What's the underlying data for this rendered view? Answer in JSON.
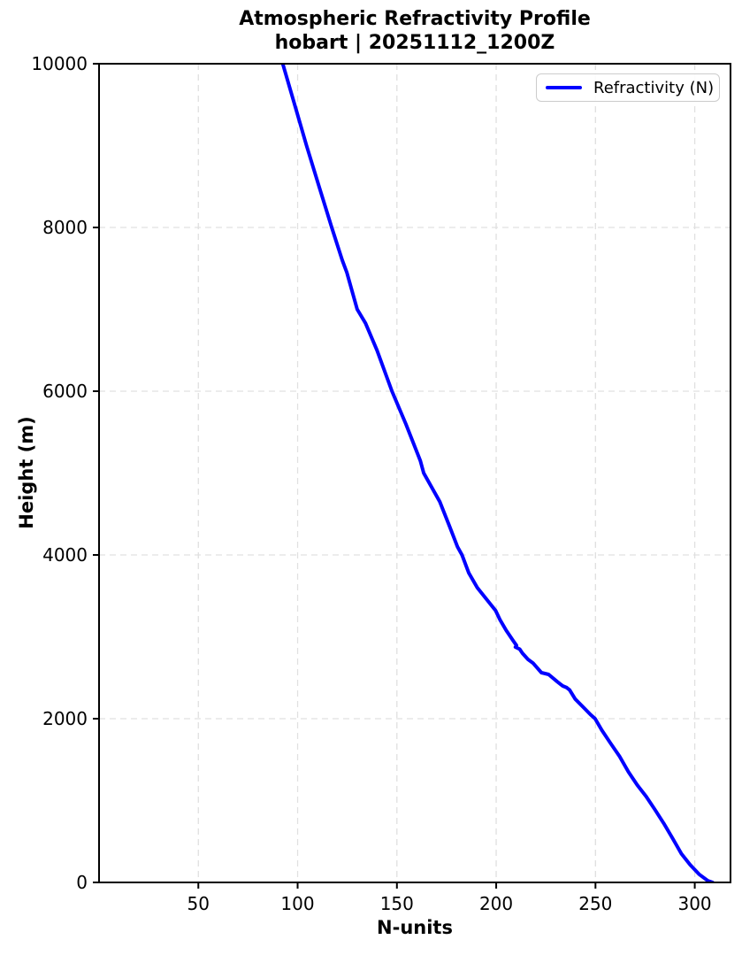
{
  "chart_data": {
    "type": "line",
    "title": "Atmospheric Refractivity Profile",
    "subtitle": "hobart | 20251112_1200Z",
    "xlabel": "N-units",
    "ylabel": "Height (m)",
    "grid": true,
    "legend": {
      "position": "upper right",
      "entries": [
        {
          "label": "Refractivity (N)",
          "color": "#0000ff"
        }
      ]
    },
    "xlim": [
      0,
      318
    ],
    "ylim": [
      0,
      10000
    ],
    "xticks": [
      50,
      100,
      150,
      200,
      250,
      300
    ],
    "yticks": [
      0,
      2000,
      4000,
      6000,
      8000,
      10000
    ],
    "colors": {
      "line": "#0000ff",
      "grid": "#e0e0e0",
      "spine": "#000000",
      "text": "#000000"
    },
    "series": [
      {
        "name": "Refractivity (N)",
        "color": "#0000ff",
        "linewidth": 4,
        "points_format": [
          "n_units",
          "height_m"
        ],
        "points": [
          [
            92.5,
            10000
          ],
          [
            98.5,
            9500
          ],
          [
            104.5,
            9000
          ],
          [
            110.8,
            8500
          ],
          [
            117.2,
            8000
          ],
          [
            122.5,
            7600
          ],
          [
            124.8,
            7450
          ],
          [
            130.0,
            7000
          ],
          [
            134.2,
            6830
          ],
          [
            140.0,
            6500
          ],
          [
            147.5,
            6000
          ],
          [
            154.5,
            5600
          ],
          [
            161.8,
            5150
          ],
          [
            163.5,
            5000
          ],
          [
            171.6,
            4650
          ],
          [
            176.5,
            4350
          ],
          [
            180.5,
            4100
          ],
          [
            182.8,
            4000
          ],
          [
            186.2,
            3780
          ],
          [
            190.5,
            3600
          ],
          [
            196.1,
            3430
          ],
          [
            199.7,
            3320
          ],
          [
            201.9,
            3210
          ],
          [
            205.0,
            3080
          ],
          [
            208.6,
            2950
          ],
          [
            210.2,
            2895
          ],
          [
            209.7,
            2875
          ],
          [
            211.8,
            2850
          ],
          [
            213.2,
            2800
          ],
          [
            216.0,
            2724
          ],
          [
            218.5,
            2680
          ],
          [
            222.8,
            2562
          ],
          [
            226.4,
            2540
          ],
          [
            230.9,
            2450
          ],
          [
            233.5,
            2400
          ],
          [
            235.5,
            2380
          ],
          [
            237.0,
            2350
          ],
          [
            239.8,
            2240
          ],
          [
            244.3,
            2130
          ],
          [
            247.5,
            2050
          ],
          [
            249.8,
            2000
          ],
          [
            253.2,
            1860
          ],
          [
            257.6,
            1700
          ],
          [
            262.1,
            1540
          ],
          [
            266.6,
            1350
          ],
          [
            271.0,
            1190
          ],
          [
            275.5,
            1050
          ],
          [
            279.9,
            890
          ],
          [
            284.4,
            720
          ],
          [
            288.8,
            540
          ],
          [
            293.3,
            350
          ],
          [
            297.7,
            215
          ],
          [
            302.2,
            100
          ],
          [
            306.6,
            20
          ],
          [
            309.0,
            0
          ]
        ]
      }
    ]
  }
}
